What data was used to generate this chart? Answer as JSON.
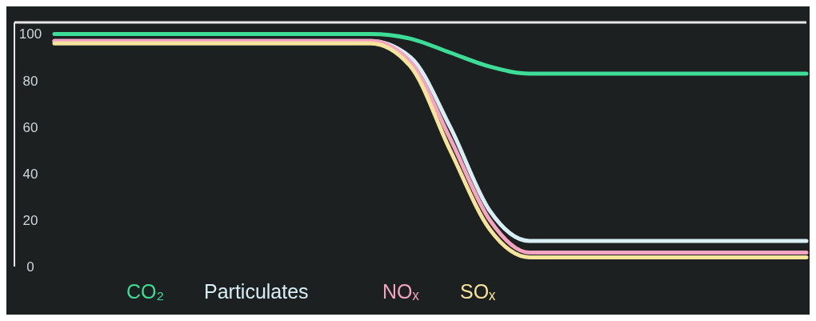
{
  "chart_data": {
    "type": "line",
    "categories": [
      null,
      null,
      null,
      null,
      null,
      null,
      null,
      null,
      null,
      null,
      null,
      null,
      null,
      null,
      null,
      null,
      null,
      null,
      null,
      null
    ],
    "ylim": [
      0,
      105
    ],
    "yticks": [
      0,
      20,
      40,
      60,
      80,
      100
    ],
    "legend": "bottom",
    "grid": false,
    "marker": "none",
    "line_style": "solid",
    "series": [
      {
        "name": "CO₂",
        "color": "#3ddc97",
        "values": [
          100,
          100,
          100,
          100,
          100,
          100,
          100,
          100,
          100,
          98,
          92,
          86,
          83,
          83,
          83,
          83,
          83,
          83,
          83,
          83
        ]
      },
      {
        "name": "Particulates",
        "color": "#d8eef5",
        "values": [
          97,
          97,
          97,
          97,
          97,
          97,
          97,
          97,
          97,
          90,
          60,
          24,
          11,
          11,
          11,
          11,
          11,
          11,
          11,
          11
        ]
      },
      {
        "name": "NOₓ",
        "color": "#f4a3c0",
        "values": [
          97,
          97,
          97,
          97,
          97,
          97,
          97,
          97,
          97,
          88,
          55,
          20,
          6,
          6,
          6,
          6,
          6,
          6,
          6,
          6
        ]
      },
      {
        "name": "SOₓ",
        "color": "#f5e49c",
        "values": [
          96,
          96,
          96,
          96,
          96,
          96,
          96,
          96,
          96,
          86,
          50,
          16,
          4,
          4,
          4,
          4,
          4,
          4,
          4,
          4
        ]
      }
    ]
  }
}
